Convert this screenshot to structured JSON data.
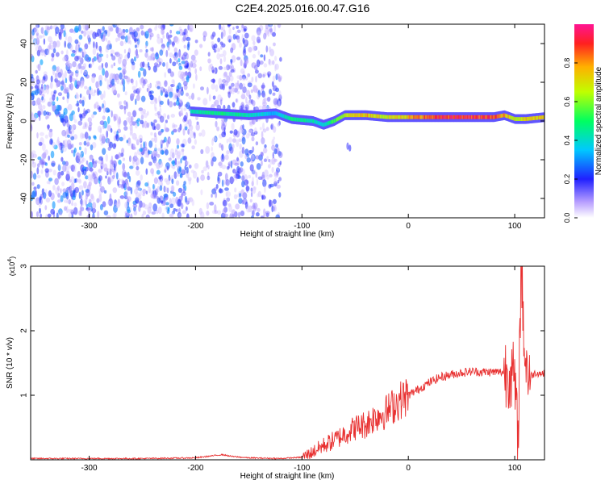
{
  "title": "C2E4.2025.016.00.47.G16",
  "colors": {
    "snr_line": "#e83030",
    "frame": "#000000",
    "background": "#ffffff"
  },
  "chart_data": [
    {
      "type": "heatmap",
      "xlabel": "Height of straight line (km)",
      "ylabel": "Frequency (Hz)",
      "xlim": [
        -355,
        128
      ],
      "ylim": [
        -50,
        50
      ],
      "xticks": [
        -300,
        -200,
        -100,
        0,
        100
      ],
      "xtick_labels": [
        "-300",
        "-200",
        "-100",
        "0",
        "100"
      ],
      "yticks": [
        -40,
        -20,
        0,
        20,
        40
      ],
      "ytick_labels": [
        "-40",
        "-20",
        "0",
        "20",
        "40"
      ],
      "grid": false,
      "colormap": "rainbow (violet to red)",
      "colorbar": {
        "label": "Normalized spectral amplitude",
        "range": [
          0,
          1
        ],
        "ticks": [
          0.0,
          0.2,
          0.4,
          0.6,
          0.8
        ],
        "tick_labels": [
          "0.0",
          "0.2",
          "0.4",
          "0.6",
          "0.8"
        ]
      },
      "regions": [
        {
          "x": [
            -355,
            -205
          ],
          "content": "dense scattered noise, amplitude mostly 0.05-0.3"
        },
        {
          "x": [
            -205,
            -185
          ],
          "content": "gap, sparse"
        },
        {
          "x": [
            -185,
            -120
          ],
          "content": "scattered noise"
        },
        {
          "x": [
            -205,
            128
          ],
          "content": "signal ridge near 0 to 6 Hz, amplitude rising to ~1.0 from -40 km upward"
        }
      ],
      "ridge": {
        "x": [
          -205,
          -180,
          -150,
          -125,
          -110,
          -90,
          -80,
          -70,
          -60,
          -50,
          -40,
          -20,
          0,
          20,
          40,
          60,
          80,
          90,
          100,
          110,
          128
        ],
        "freq": [
          5,
          4,
          3,
          4,
          1,
          0,
          -2,
          0,
          3,
          3,
          3,
          2,
          2,
          2,
          2,
          2,
          2,
          3,
          1,
          1,
          2
        ],
        "amplitude": [
          0.45,
          0.5,
          0.45,
          0.35,
          0.5,
          0.45,
          0.4,
          0.55,
          0.7,
          0.75,
          0.8,
          0.7,
          0.8,
          0.9,
          0.95,
          0.95,
          0.9,
          0.8,
          0.7,
          0.75,
          0.8
        ]
      }
    },
    {
      "type": "line",
      "xlabel": "Height of straight line (km)",
      "ylabel": "SNR (10 * v/v)",
      "y_multiplier_label": "(x10",
      "y_multiplier_exp": "4",
      "xlim": [
        -355,
        128
      ],
      "ylim": [
        0,
        3
      ],
      "xticks": [
        -300,
        -200,
        -100,
        0,
        100
      ],
      "xtick_labels": [
        "-300",
        "-200",
        "-100",
        "0",
        "100"
      ],
      "yticks": [
        1,
        2,
        3
      ],
      "ytick_labels": [
        "1",
        "2",
        "3"
      ],
      "grid": false,
      "series": [
        {
          "x": [
            -355,
            -300,
            -250,
            -200,
            -185,
            -175,
            -165,
            -150,
            -120,
            -100,
            -90,
            -80,
            -70,
            -60,
            -50,
            -40,
            -30,
            -20,
            -10,
            0,
            10,
            20,
            30,
            40,
            50,
            60,
            70,
            80,
            90,
            95,
            100,
            103,
            106,
            110,
            115,
            120,
            128
          ],
          "y": [
            0.02,
            0.02,
            0.02,
            0.03,
            0.06,
            0.08,
            0.05,
            0.03,
            0.02,
            0.04,
            0.12,
            0.22,
            0.3,
            0.4,
            0.5,
            0.55,
            0.68,
            0.75,
            0.9,
            1.0,
            1.1,
            1.2,
            1.28,
            1.32,
            1.35,
            1.37,
            1.36,
            1.36,
            1.36,
            1.4,
            1.2,
            0.2,
            3.0,
            1.5,
            1.3,
            1.35,
            1.33
          ]
        }
      ]
    }
  ]
}
